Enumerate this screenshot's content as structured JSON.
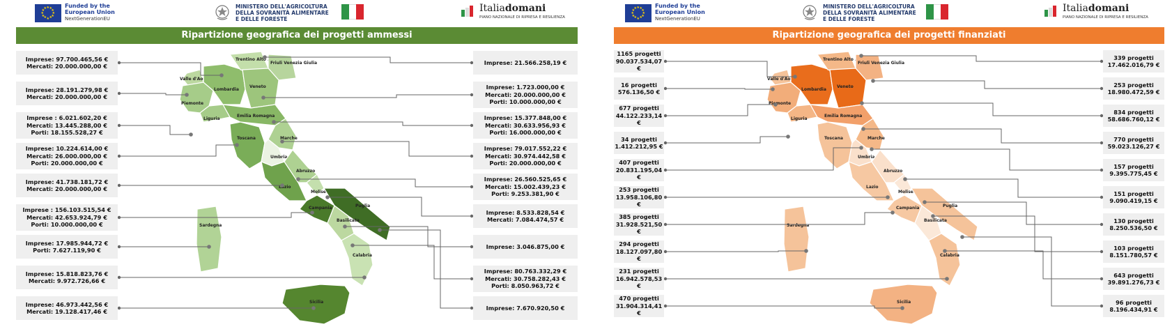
{
  "header": {
    "eu_line1": "Funded by the",
    "eu_line2": "European Union",
    "eu_line3": "NextGenerationEU",
    "ministry_line1": "MINISTERO DELL'AGRICOLTURA",
    "ministry_line2": "DELLA SOVRANITÀ ALIMENTARE",
    "ministry_line3": "E DELLE FORESTE",
    "italia_regular": "Italia",
    "italia_bold": "domani",
    "italia_sub": "PIANO NAZIONALE DI RIPRESA E RESILIENZA"
  },
  "colors": {
    "eu_blue": "#1f3e96",
    "eu_yellow": "#ffd500",
    "green_bar": "#5b8b34",
    "orange_bar": "#ef7d2e",
    "flag_green": "#2e9447",
    "flag_white": "#ffffff",
    "flag_red": "#d9262e",
    "box_gray": "#efefef"
  },
  "region_names": [
    "Valle d'Aosta",
    "Piemonte",
    "Lombardia",
    "Trentino Alto Adige",
    "Friuli Venezia Giulia",
    "Veneto",
    "Liguria",
    "Emilia Romagna",
    "Toscana",
    "Marche",
    "Umbria",
    "Lazio",
    "Abruzzo",
    "Molise",
    "Campania",
    "Puglia",
    "Basilicata",
    "Calabria",
    "Sardegna",
    "Sicilia"
  ],
  "left_panel": {
    "title": "Ripartizione geografica dei progetti ammessi",
    "left_boxes": [
      {
        "lines": [
          "Imprese: 97.700.465,56 €",
          "Mercati: 20.000.000,00 €"
        ]
      },
      {
        "lines": [
          "Imprese: 28.191.279,98 €",
          "Mercati: 20.000.000,00 €"
        ]
      },
      {
        "lines": [
          "Imprese : 6.021.602,20 €",
          "Mercati: 13.445.288,00 €",
          "Porti: 18.155.528,27 €"
        ]
      },
      {
        "lines": [
          "Imprese: 10.224.614,00 €",
          "Mercati: 26.000.000,00 €",
          "Porti: 20.000.000,00 €"
        ]
      },
      {
        "lines": [
          "Imprese: 41.738.181,72 €",
          "Mercati: 20.000.000,00 €"
        ]
      },
      {
        "lines": [
          "Imprese : 156.103.515,54 €",
          "Mercati: 42.653.924,79 €",
          "Porti: 10.000.000,00 €"
        ]
      },
      {
        "lines": [
          "Imprese: 17.985.944,72 €",
          "Porti: 7.627.119,90 €"
        ]
      },
      {
        "lines": [
          "Imprese: 15.818.823,76 €",
          "Mercati: 9.972.726,66 €"
        ]
      },
      {
        "lines": [
          "Imprese: 46.973.442,56 €",
          "Mercati: 19.128.417,46 €"
        ]
      }
    ],
    "right_boxes": [
      {
        "lines": [
          "Imprese: 21.566.258,19 €"
        ]
      },
      {
        "lines": [
          "Imprese: 1.723.000,00 €",
          "Mercati: 20.000.000,00 €",
          "Porti: 10.000.000,00 €"
        ]
      },
      {
        "lines": [
          "Imprese: 15.377.848,00 €",
          "Mercati: 30.633.956,93 €",
          "Porti: 16.000.000,00 €"
        ]
      },
      {
        "lines": [
          "Imprese: 79.017.552,22 €",
          "Mercati: 30.974.442,58 €",
          "Porti: 20.000.000,00 €"
        ]
      },
      {
        "lines": [
          "Imprese: 26.560.525,65 €",
          "Mercati: 15.002.439,23 €",
          "Porti: 9.253.381,90 €"
        ]
      },
      {
        "lines": [
          "Imprese: 8.533.828,54 €",
          "Mercati: 7.084.474,57 €"
        ]
      },
      {
        "lines": [
          "Imprese: 3.046.875,00 €"
        ]
      },
      {
        "lines": [
          "Imprese: 80.763.332,29 €",
          "Mercati: 30.758.282,43 €",
          "Porti: 8.050.963,72 €"
        ]
      },
      {
        "lines": [
          "Imprese: 7.670.920,50 €"
        ]
      }
    ]
  },
  "right_panel": {
    "title": "Ripartizione geografica dei progetti finanziati",
    "left_boxes": [
      {
        "lines": [
          "1165 progetti",
          "90.037.534,07 €"
        ]
      },
      {
        "lines": [
          "16 progetti",
          "576.136,50 €"
        ]
      },
      {
        "lines": [
          "677 progetti",
          "44.122.233,14 €"
        ]
      },
      {
        "lines": [
          "34 progetti",
          "1.412.212,95 €"
        ]
      },
      {
        "lines": [
          "407 progetti",
          "20.831.195,04 €"
        ]
      },
      {
        "lines": [
          "253 progetti",
          "13.958.106,80 €"
        ]
      },
      {
        "lines": [
          "385 progetti",
          "31.928.521,50 €"
        ]
      },
      {
        "lines": [
          "294 progetti",
          "18.127.097,80 €"
        ]
      },
      {
        "lines": [
          "231 progetti",
          "16.942.578,53 €"
        ]
      },
      {
        "lines": [
          "470 progetti",
          "31.904.314,41 €"
        ]
      }
    ],
    "right_boxes": [
      {
        "lines": [
          "339 progetti",
          "17.462.016,79 €"
        ]
      },
      {
        "lines": [
          "253 progetti",
          "18.980.472,59 €"
        ]
      },
      {
        "lines": [
          "834 progetti",
          "58.686.760,12 €"
        ]
      },
      {
        "lines": [
          "770 progetti",
          "59.023.126,27 €"
        ]
      },
      {
        "lines": [
          "157 progetti",
          "9.395.775,45 €"
        ]
      },
      {
        "lines": [
          "151 progetti",
          "9.090.419,15 €"
        ]
      },
      {
        "lines": [
          "130 progetti",
          "8.250.536,50 €"
        ]
      },
      {
        "lines": [
          "103 progetti",
          "8.151.780,57 €"
        ]
      },
      {
        "lines": [
          "643 progetti",
          "39.891.276,73 €"
        ]
      },
      {
        "lines": [
          "96 progetti",
          "8.196.434,91 €"
        ]
      }
    ]
  }
}
